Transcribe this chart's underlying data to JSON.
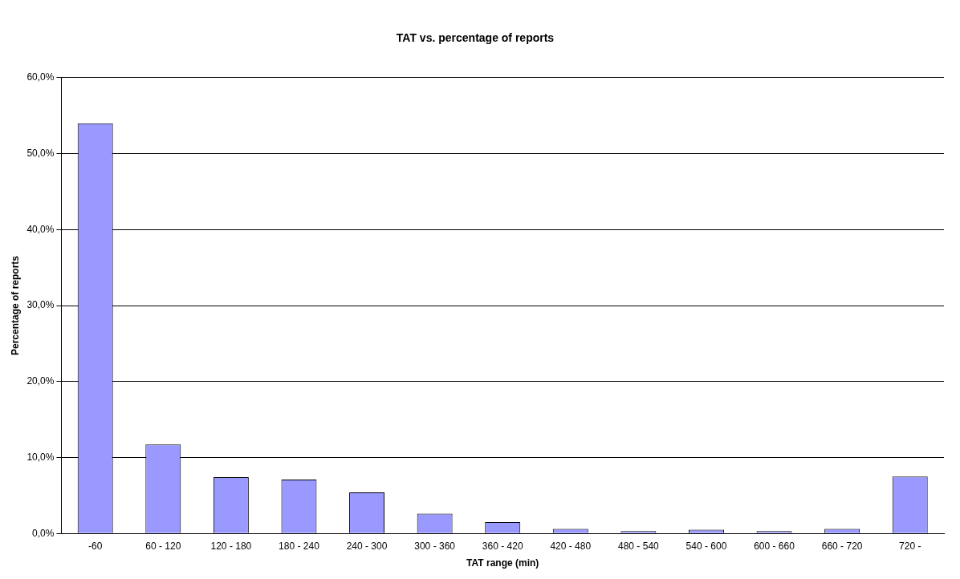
{
  "chart_data": {
    "type": "bar",
    "title": "TAT vs. percentage of reports",
    "xlabel": "TAT range (min)",
    "ylabel": "Percentage of reports",
    "categories": [
      "-60",
      "60 - 120",
      "120 - 180",
      "180 - 240",
      "240 - 300",
      "300 - 360",
      "360 - 420",
      "420 - 480",
      "480 - 540",
      "540 - 600",
      "600 - 660",
      "660 - 720",
      "720 -"
    ],
    "values": [
      54.0,
      11.7,
      7.4,
      7.1,
      5.4,
      2.6,
      1.5,
      0.6,
      0.3,
      0.5,
      0.3,
      0.6,
      7.5
    ],
    "color": "#9999ff",
    "ylim": [
      0,
      60
    ],
    "yticks": [
      {
        "value": 0,
        "label": "0,0%"
      },
      {
        "value": 10,
        "label": "10,0%"
      },
      {
        "value": 20,
        "label": "20,0%"
      },
      {
        "value": 30,
        "label": "30,0%"
      },
      {
        "value": 40,
        "label": "40,0%"
      },
      {
        "value": 50,
        "label": "50,0%"
      },
      {
        "value": 60,
        "label": "60,0%"
      }
    ],
    "grid": "y",
    "legend": false
  }
}
